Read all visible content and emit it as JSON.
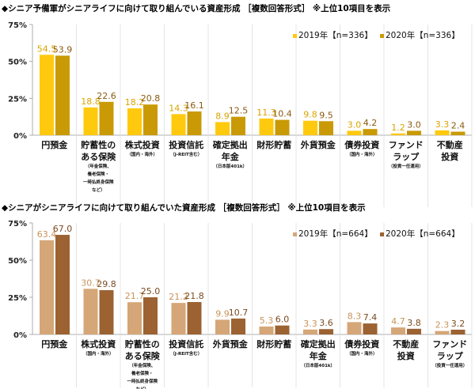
{
  "chart_data": [
    {
      "type": "bar",
      "title": "◆シニア予備軍がシニアライフに向けて取り組んでいる資産形成 ［複数回答形式］ ※上位10項目を表示",
      "ylim": [
        0,
        75
      ],
      "yticks": [
        "0%",
        "25%",
        "50%",
        "75%"
      ],
      "legend_position": "top-right",
      "categories": [
        {
          "main": [
            "円預金"
          ],
          "sub": []
        },
        {
          "main": [
            "貯蓄性の",
            "ある保険"
          ],
          "sub": [
            "（年金保険、",
            "養老保険・",
            "一時払終身保険",
            "など）"
          ]
        },
        {
          "main": [
            "株式投資"
          ],
          "sub": [
            "（国内・海外）"
          ]
        },
        {
          "main": [
            "投資信託"
          ],
          "sub": [
            "（J-REIT含む）"
          ]
        },
        {
          "main": [
            "確定拠出",
            "年金"
          ],
          "sub": [
            "（日本版401k）"
          ]
        },
        {
          "main": [
            "財形貯蓄"
          ],
          "sub": []
        },
        {
          "main": [
            "外貨預金"
          ],
          "sub": []
        },
        {
          "main": [
            "債券投資"
          ],
          "sub": [
            "（国内・海外）"
          ]
        },
        {
          "main": [
            "ファンド",
            "ラップ"
          ],
          "sub": [
            "（投資一任運用）"
          ]
        },
        {
          "main": [
            "不動産",
            "投資"
          ],
          "sub": []
        }
      ],
      "series": [
        {
          "name": "2019年【n=336】",
          "color": "#FFC90E",
          "label_color": "#D9A400",
          "values": [
            54.5,
            18.8,
            18.2,
            14.3,
            8.9,
            11.3,
            9.8,
            3.0,
            1.2,
            3.3
          ]
        },
        {
          "name": "2020年【n=336】",
          "color": "#C99A06",
          "label_color": "#8A5A10",
          "values": [
            53.9,
            22.6,
            20.8,
            16.1,
            12.5,
            10.4,
            9.5,
            4.2,
            3.0,
            2.4
          ]
        }
      ]
    },
    {
      "type": "bar",
      "title": "◆シニアがシニアライフに向けて取り組んでいた資産形成 ［複数回答形式］ ※上位10項目を表示",
      "ylim": [
        0,
        75
      ],
      "yticks": [
        "0%",
        "25%",
        "50%",
        "75%"
      ],
      "legend_position": "top-right",
      "categories": [
        {
          "main": [
            "円預金"
          ],
          "sub": []
        },
        {
          "main": [
            "株式投資"
          ],
          "sub": [
            "（国内・海外）"
          ]
        },
        {
          "main": [
            "貯蓄性の",
            "ある保険"
          ],
          "sub": [
            "（年金保険、",
            "養老保険・",
            "一時払終身保険",
            "など）"
          ]
        },
        {
          "main": [
            "投資信託"
          ],
          "sub": [
            "（J-REIT含む）"
          ]
        },
        {
          "main": [
            "外貨預金"
          ],
          "sub": []
        },
        {
          "main": [
            "財形貯蓄"
          ],
          "sub": []
        },
        {
          "main": [
            "確定拠出",
            "年金"
          ],
          "sub": [
            "（日本版401k）"
          ]
        },
        {
          "main": [
            "債券投資"
          ],
          "sub": [
            "（国内・海外）"
          ]
        },
        {
          "main": [
            "不動産",
            "投資"
          ],
          "sub": []
        },
        {
          "main": [
            "ファンド",
            "ラップ"
          ],
          "sub": [
            "（投資一任運用）"
          ]
        }
      ],
      "series": [
        {
          "name": "2019年【n=664】",
          "color": "#D5A677",
          "label_color": "#C8935A",
          "values": [
            63.4,
            30.7,
            21.7,
            21.2,
            9.9,
            5.3,
            3.3,
            8.3,
            4.7,
            2.3
          ]
        },
        {
          "name": "2020年【n=664】",
          "color": "#9C6232",
          "label_color": "#7A4A20",
          "values": [
            67.0,
            29.8,
            25.0,
            21.8,
            10.7,
            6.0,
            3.6,
            7.4,
            3.8,
            3.2
          ]
        }
      ]
    }
  ]
}
